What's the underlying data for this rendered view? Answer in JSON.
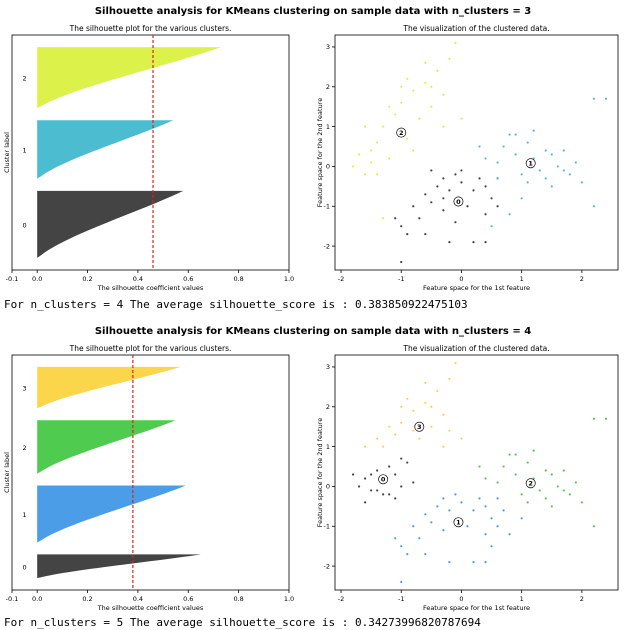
{
  "figures": [
    {
      "suptitle": "Silhouette analysis for KMeans clustering on sample data with n_clusters = 3",
      "output": "For n_clusters = 4 The average silhouette_score is : 0.383850922475103"
    },
    {
      "suptitle": "Silhouette analysis for KMeans clustering on sample data with n_clusters = 4",
      "output": "For n_clusters = 5 The average silhouette_score is : 0.34273996820787694"
    }
  ],
  "chart_data": [
    {
      "type": "area",
      "title": "The silhouette plot for the various clusters.",
      "xlabel": "The silhouette coefficient values",
      "ylabel": "Cluster label",
      "xlim": [
        -0.1,
        1.0
      ],
      "xticks": [
        "-0.1",
        "0.0",
        "0.2",
        "0.4",
        "0.6",
        "0.8",
        "1.0"
      ],
      "average_silhouette": 0.46,
      "clusters": [
        {
          "label": "0",
          "color": "#444444",
          "size": 55,
          "max": 0.58
        },
        {
          "label": "1",
          "color": "#4cbdd0",
          "size": 48,
          "max": 0.54
        },
        {
          "label": "2",
          "color": "#dcf24a",
          "size": 50,
          "max": 0.73
        }
      ]
    },
    {
      "type": "scatter",
      "title": "The visualization of the clustered data.",
      "xlabel": "Feature space for the 1st feature",
      "ylabel": "Feature space for the 2nd feature",
      "xlim": [
        -2.1,
        2.6
      ],
      "ylim": [
        -2.6,
        3.3
      ],
      "xticks": [
        "-2",
        "-1",
        "0",
        "1",
        "2"
      ],
      "yticks": [
        "-2",
        "-1",
        "0",
        "1",
        "2",
        "3"
      ],
      "centers": [
        {
          "label": "0",
          "x": -0.05,
          "y": -0.88
        },
        {
          "label": "1",
          "x": 1.15,
          "y": 0.08
        },
        {
          "label": "2",
          "x": -1.0,
          "y": 0.85
        }
      ],
      "clusters": [
        {
          "color": "#444444",
          "points": [
            [
              -1.1,
              -1.3
            ],
            [
              -1.0,
              -1.5
            ],
            [
              -0.9,
              -1.7
            ],
            [
              -0.8,
              -1.0
            ],
            [
              -0.7,
              -1.3
            ],
            [
              -0.6,
              -0.7
            ],
            [
              -0.5,
              -0.9
            ],
            [
              -0.4,
              -0.5
            ],
            [
              -0.3,
              -1.1
            ],
            [
              -0.3,
              -0.3
            ],
            [
              -0.2,
              -0.6
            ],
            [
              -0.1,
              -0.2
            ],
            [
              0.0,
              -0.4
            ],
            [
              0.1,
              -1.0
            ],
            [
              0.2,
              -0.6
            ],
            [
              0.3,
              -0.3
            ],
            [
              0.4,
              -1.2
            ],
            [
              0.4,
              -0.5
            ],
            [
              0.5,
              -0.8
            ],
            [
              0.6,
              -0.3
            ],
            [
              -0.5,
              -0.1
            ],
            [
              -0.3,
              -0.8
            ],
            [
              -0.1,
              -1.4
            ],
            [
              0.2,
              -1.9
            ],
            [
              0.4,
              -1.9
            ],
            [
              -1.0,
              -2.4
            ],
            [
              -0.6,
              -1.7
            ],
            [
              0.0,
              -0.1
            ],
            [
              -0.2,
              -1.9
            ],
            [
              0.6,
              -1.0
            ]
          ]
        },
        {
          "color": "#4cbdd0",
          "points": [
            [
              0.6,
              0.1
            ],
            [
              0.7,
              0.5
            ],
            [
              0.8,
              0.8
            ],
            [
              0.9,
              0.3
            ],
            [
              1.0,
              -0.2
            ],
            [
              1.1,
              0.6
            ],
            [
              1.2,
              0.2
            ],
            [
              1.3,
              -0.1
            ],
            [
              1.4,
              0.4
            ],
            [
              1.5,
              -0.5
            ],
            [
              1.6,
              0.0
            ],
            [
              1.7,
              0.4
            ],
            [
              1.8,
              -0.2
            ],
            [
              1.9,
              0.1
            ],
            [
              2.0,
              -0.4
            ],
            [
              2.2,
              1.7
            ],
            [
              2.4,
              1.7
            ],
            [
              2.2,
              -1.0
            ],
            [
              1.0,
              -0.8
            ],
            [
              0.8,
              -1.2
            ],
            [
              0.5,
              -1.5
            ],
            [
              0.4,
              0.2
            ],
            [
              0.6,
              -0.3
            ],
            [
              1.2,
              0.9
            ],
            [
              1.1,
              -0.4
            ],
            [
              0.9,
              0.8
            ],
            [
              1.5,
              0.3
            ],
            [
              1.7,
              -0.1
            ],
            [
              0.3,
              0.5
            ],
            [
              1.4,
              -0.3
            ]
          ]
        },
        {
          "color": "#dcf24a",
          "points": [
            [
              -1.8,
              0.0
            ],
            [
              -1.7,
              0.3
            ],
            [
              -1.6,
              -0.2
            ],
            [
              -1.5,
              0.4
            ],
            [
              -1.4,
              0.6
            ],
            [
              -1.3,
              1.0
            ],
            [
              -1.2,
              0.2
            ],
            [
              -1.1,
              1.3
            ],
            [
              -1.0,
              1.6
            ],
            [
              -0.9,
              0.7
            ],
            [
              -0.8,
              1.9
            ],
            [
              -0.7,
              1.2
            ],
            [
              -0.6,
              2.1
            ],
            [
              -0.5,
              1.5
            ],
            [
              -0.4,
              2.4
            ],
            [
              -0.3,
              1.0
            ],
            [
              -0.2,
              2.7
            ],
            [
              -0.1,
              3.1
            ],
            [
              0.0,
              1.2
            ],
            [
              -1.6,
              1.0
            ],
            [
              -1.2,
              1.5
            ],
            [
              -0.9,
              2.2
            ],
            [
              -0.5,
              2.0
            ],
            [
              -0.3,
              1.8
            ],
            [
              -1.4,
              -0.2
            ],
            [
              -0.8,
              0.4
            ],
            [
              -1.0,
              2.0
            ],
            [
              -1.5,
              0.1
            ],
            [
              -0.6,
              2.6
            ],
            [
              -1.3,
              -1.3
            ]
          ]
        }
      ]
    },
    {
      "type": "area",
      "title": "The silhouette plot for the various clusters.",
      "xlabel": "The silhouette coefficient values",
      "ylabel": "Cluster label",
      "xlim": [
        -0.1,
        1.0
      ],
      "xticks": [
        "-0.1",
        "0.0",
        "0.2",
        "0.4",
        "0.6",
        "0.8",
        "1.0"
      ],
      "average_silhouette": 0.38,
      "clusters": [
        {
          "label": "0",
          "color": "#444444",
          "size": 20,
          "max": 0.65
        },
        {
          "label": "1",
          "color": "#4a9de6",
          "size": 48,
          "max": 0.59
        },
        {
          "label": "2",
          "color": "#4fcc4f",
          "size": 45,
          "max": 0.55
        },
        {
          "label": "3",
          "color": "#fcd64a",
          "size": 35,
          "max": 0.57
        }
      ]
    },
    {
      "type": "scatter",
      "title": "The visualization of the clustered data.",
      "xlabel": "Feature space for the 1st feature",
      "ylabel": "Feature space for the 2nd feature",
      "xlim": [
        -2.1,
        2.6
      ],
      "ylim": [
        -2.6,
        3.3
      ],
      "xticks": [
        "-2",
        "-1",
        "0",
        "1",
        "2"
      ],
      "yticks": [
        "-2",
        "-1",
        "0",
        "1",
        "2",
        "3"
      ],
      "centers": [
        {
          "label": "0",
          "x": -1.3,
          "y": 0.18
        },
        {
          "label": "1",
          "x": -0.05,
          "y": -0.9
        },
        {
          "label": "2",
          "x": 1.15,
          "y": 0.08
        },
        {
          "label": "3",
          "x": -0.7,
          "y": 1.5
        }
      ],
      "clusters": [
        {
          "color": "#444444",
          "points": [
            [
              -1.8,
              0.3
            ],
            [
              -1.7,
              0.0
            ],
            [
              -1.6,
              0.2
            ],
            [
              -1.5,
              -0.1
            ],
            [
              -1.4,
              0.4
            ],
            [
              -1.3,
              0.1
            ],
            [
              -1.2,
              -0.2
            ],
            [
              -1.1,
              0.3
            ],
            [
              -1.0,
              0.0
            ],
            [
              -0.9,
              0.6
            ],
            [
              -1.2,
              0.5
            ],
            [
              -1.4,
              -0.1
            ],
            [
              -1.6,
              -0.4
            ],
            [
              -1.0,
              0.7
            ],
            [
              -1.5,
              0.3
            ],
            [
              -1.1,
              -0.3
            ],
            [
              -0.8,
              0.1
            ],
            [
              -1.3,
              -0.2
            ]
          ]
        },
        {
          "color": "#4a9de6",
          "points": [
            [
              -1.1,
              -1.3
            ],
            [
              -1.0,
              -1.5
            ],
            [
              -0.9,
              -1.7
            ],
            [
              -0.8,
              -1.0
            ],
            [
              -0.7,
              -1.3
            ],
            [
              -0.6,
              -0.7
            ],
            [
              -0.5,
              -0.9
            ],
            [
              -0.4,
              -0.5
            ],
            [
              -0.3,
              -1.1
            ],
            [
              -0.3,
              -0.3
            ],
            [
              -0.2,
              -0.6
            ],
            [
              -0.1,
              -0.2
            ],
            [
              0.0,
              -0.4
            ],
            [
              0.1,
              -1.0
            ],
            [
              0.2,
              -0.6
            ],
            [
              0.3,
              -0.3
            ],
            [
              0.4,
              -1.2
            ],
            [
              0.4,
              -0.5
            ],
            [
              0.5,
              -0.8
            ],
            [
              0.6,
              -0.3
            ],
            [
              0.2,
              -1.9
            ],
            [
              0.4,
              -1.9
            ],
            [
              -1.0,
              -2.4
            ],
            [
              -0.6,
              -1.7
            ],
            [
              0.6,
              -1.0
            ],
            [
              0.8,
              -1.2
            ],
            [
              1.0,
              -0.8
            ],
            [
              0.5,
              -1.5
            ],
            [
              -0.2,
              -1.9
            ],
            [
              0.7,
              -0.6
            ]
          ]
        },
        {
          "color": "#4fcc4f",
          "points": [
            [
              0.6,
              0.1
            ],
            [
              0.7,
              0.5
            ],
            [
              0.8,
              0.8
            ],
            [
              0.9,
              0.3
            ],
            [
              1.0,
              -0.2
            ],
            [
              1.1,
              0.6
            ],
            [
              1.2,
              0.2
            ],
            [
              1.3,
              -0.1
            ],
            [
              1.4,
              0.4
            ],
            [
              1.5,
              -0.5
            ],
            [
              1.6,
              0.0
            ],
            [
              1.7,
              0.4
            ],
            [
              1.8,
              -0.2
            ],
            [
              1.9,
              0.1
            ],
            [
              2.0,
              -0.4
            ],
            [
              2.2,
              1.7
            ],
            [
              2.4,
              1.7
            ],
            [
              2.2,
              -1.0
            ],
            [
              0.4,
              0.2
            ],
            [
              1.2,
              0.9
            ],
            [
              1.1,
              -0.4
            ],
            [
              0.9,
              0.8
            ],
            [
              1.5,
              0.3
            ],
            [
              1.7,
              -0.1
            ],
            [
              0.3,
              0.5
            ],
            [
              1.4,
              -0.3
            ]
          ]
        },
        {
          "color": "#fcd64a",
          "points": [
            [
              -1.3,
              1.0
            ],
            [
              -1.1,
              1.3
            ],
            [
              -1.0,
              1.6
            ],
            [
              -0.8,
              1.9
            ],
            [
              -0.7,
              1.2
            ],
            [
              -0.6,
              2.1
            ],
            [
              -0.5,
              1.5
            ],
            [
              -0.4,
              2.4
            ],
            [
              -0.3,
              1.0
            ],
            [
              -0.2,
              2.7
            ],
            [
              -0.1,
              3.1
            ],
            [
              0.0,
              1.2
            ],
            [
              -1.6,
              1.0
            ],
            [
              -1.2,
              1.5
            ],
            [
              -0.9,
              2.2
            ],
            [
              -0.5,
              2.0
            ],
            [
              -0.3,
              1.8
            ],
            [
              -1.0,
              2.0
            ],
            [
              -0.6,
              2.6
            ],
            [
              -0.2,
              1.4
            ],
            [
              -0.8,
              1.4
            ],
            [
              -1.4,
              1.2
            ]
          ]
        }
      ]
    }
  ]
}
